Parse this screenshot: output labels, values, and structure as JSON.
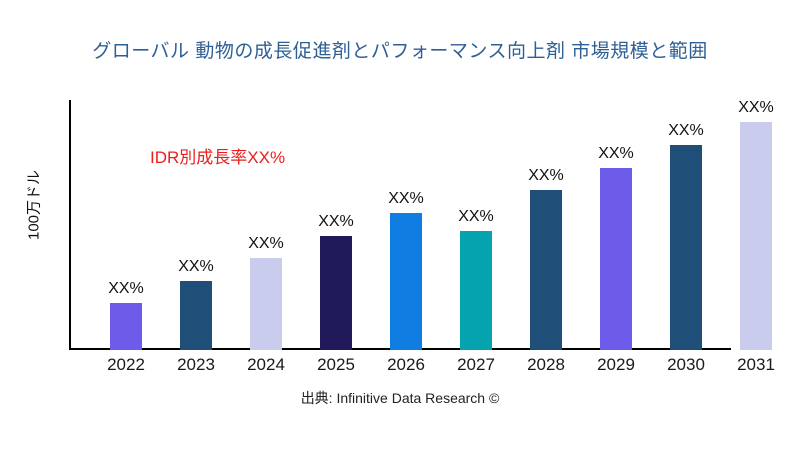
{
  "title": "グローバル 動物の成長促進剤とパフォーマンス向上剤 市場規模と範囲",
  "title_color": "#2E6096",
  "annotation": {
    "text": "IDR別成長率XX%",
    "color": "#EC1D1D"
  },
  "y_axis_label": "100万ドル",
  "source": "出典: Infinitive Data Research ©",
  "chart_data": {
    "type": "bar",
    "title": "グローバル 動物の成長促進剤とパフォーマンス向上剤 市場規模と範囲",
    "xlabel": "",
    "ylabel": "100万ドル",
    "categories": [
      "2022",
      "2023",
      "2024",
      "2025",
      "2026",
      "2027",
      "2028",
      "2029",
      "2030",
      "2031"
    ],
    "bar_value_labels": [
      "XX%",
      "XX%",
      "XX%",
      "XX%",
      "XX%",
      "XX%",
      "XX%",
      "XX%",
      "XX%",
      "XX%"
    ],
    "values_relative": [
      47,
      69,
      92,
      114,
      137,
      119,
      160,
      182,
      205,
      228
    ],
    "ylim": [
      0,
      250
    ],
    "grid": false,
    "legend": false,
    "bar_colors": [
      "#6C5CE9",
      "#1F4E79",
      "#C9CCED",
      "#211A5A",
      "#0F7DE2",
      "#05A2B0",
      "#1F4E79",
      "#6C5CE9",
      "#1F4E79",
      "#C9CCED"
    ]
  }
}
